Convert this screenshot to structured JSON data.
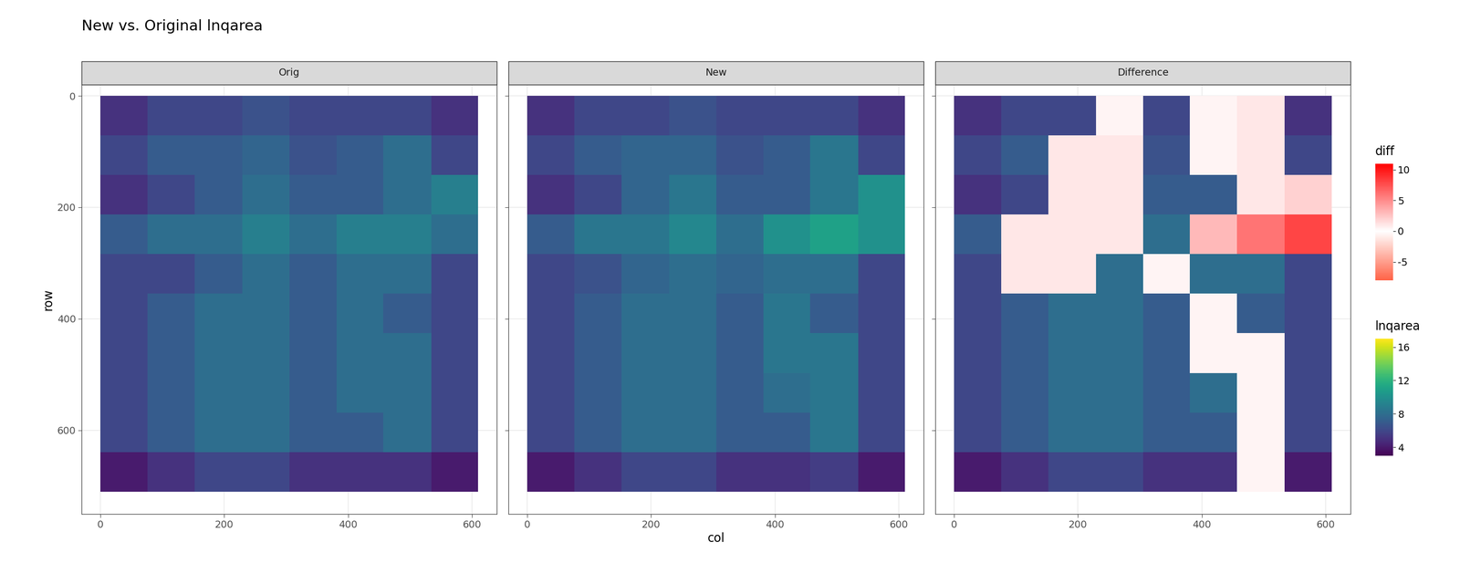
{
  "chart_data": {
    "type": "heatmap",
    "title": "New vs. Original lnqarea",
    "x_label": "col",
    "y_label": "row",
    "xlim": [
      -30,
      640
    ],
    "ylim": [
      750,
      -20
    ],
    "xticks": [
      0,
      200,
      400,
      600
    ],
    "yticks": [
      0,
      200,
      400,
      600
    ],
    "grid": true,
    "col_edges": [
      0,
      76,
      152,
      229,
      305,
      381,
      457,
      534,
      610
    ],
    "row_edges": [
      0,
      71,
      142,
      213,
      284,
      355,
      426,
      497,
      568,
      639,
      710
    ],
    "panels": [
      {
        "name": "Orig",
        "lnqarea": [
          [
            5,
            6,
            6,
            6.5,
            6,
            6,
            6,
            5
          ],
          [
            6,
            7,
            7,
            7.5,
            6.5,
            7,
            8,
            6
          ],
          [
            5,
            6,
            7,
            8,
            7,
            7,
            8,
            9
          ],
          [
            7,
            8,
            8,
            9,
            8,
            9,
            9,
            8
          ],
          [
            6,
            6,
            7,
            8,
            7,
            8,
            8,
            6
          ],
          [
            6,
            7,
            8,
            8,
            7,
            8,
            7,
            6
          ],
          [
            6,
            7,
            8,
            8,
            7,
            8,
            8,
            6
          ],
          [
            6,
            7,
            8,
            8,
            7,
            8,
            8,
            6
          ],
          [
            6,
            7,
            8,
            8,
            7,
            7,
            8,
            6
          ],
          [
            4,
            5,
            6,
            6,
            5,
            5,
            5,
            4
          ]
        ]
      },
      {
        "name": "New",
        "lnqarea": [
          [
            5,
            6,
            6,
            6.5,
            6,
            6,
            6,
            5
          ],
          [
            6,
            7,
            7.5,
            7.5,
            6.5,
            7,
            8.5,
            6
          ],
          [
            5,
            6,
            7.5,
            8.5,
            7,
            7,
            8.5,
            10
          ],
          [
            7,
            8.5,
            8.5,
            9.5,
            8,
            10,
            11,
            10
          ],
          [
            6,
            6.5,
            7.5,
            8,
            7.5,
            8,
            8,
            6
          ],
          [
            6,
            7,
            8,
            8,
            7,
            8.5,
            7,
            6
          ],
          [
            6,
            7,
            8,
            8,
            7,
            8.5,
            8.5,
            6
          ],
          [
            6,
            7,
            8,
            8,
            7,
            8,
            8.5,
            6
          ],
          [
            6,
            7,
            8,
            8,
            7,
            7,
            8.5,
            6
          ],
          [
            4,
            5,
            6,
            6,
            5,
            5,
            5.5,
            4
          ]
        ]
      },
      {
        "name": "Difference",
        "lnqarea": [
          [
            5,
            6,
            6,
            6.5,
            6,
            6,
            6,
            5
          ],
          [
            6,
            7,
            7.5,
            7.5,
            6.5,
            7,
            8.5,
            6
          ],
          [
            5,
            6,
            7.5,
            8.5,
            7,
            7,
            8.5,
            10
          ],
          [
            7,
            8.5,
            8.5,
            9.5,
            8,
            10,
            11,
            10
          ],
          [
            6,
            6.5,
            7.5,
            8,
            7.5,
            8,
            8,
            6
          ],
          [
            6,
            7,
            8,
            8,
            7,
            8.5,
            7,
            6
          ],
          [
            6,
            7,
            8,
            8,
            7,
            8.5,
            8.5,
            6
          ],
          [
            6,
            7,
            8,
            8,
            7,
            8,
            8.5,
            6
          ],
          [
            6,
            7,
            8,
            8,
            7,
            7,
            8.5,
            6
          ],
          [
            4,
            5,
            6,
            6,
            5,
            5,
            5.5,
            4
          ]
        ],
        "diff": [
          [
            null,
            null,
            null,
            0.5,
            null,
            0.5,
            1,
            null
          ],
          [
            null,
            null,
            1,
            1,
            null,
            0.5,
            1,
            null
          ],
          [
            null,
            null,
            1,
            1,
            null,
            null,
            1,
            2
          ],
          [
            null,
            1,
            1,
            1,
            null,
            3,
            6,
            8
          ],
          [
            null,
            1,
            1,
            null,
            0.5,
            null,
            null,
            null
          ],
          [
            null,
            null,
            null,
            null,
            null,
            0.5,
            null,
            null
          ],
          [
            null,
            null,
            null,
            null,
            null,
            0.5,
            0.5,
            null
          ],
          [
            null,
            null,
            null,
            null,
            null,
            null,
            0.5,
            null
          ],
          [
            null,
            null,
            null,
            null,
            null,
            null,
            0.5,
            null
          ],
          [
            null,
            null,
            null,
            null,
            null,
            null,
            0.5,
            null
          ]
        ]
      }
    ],
    "colorbars": {
      "diff": {
        "title": "diff",
        "lim": [
          -8,
          11
        ],
        "ticks": [
          -5,
          0,
          5,
          10
        ]
      },
      "lnqarea": {
        "title": "lnqarea",
        "lim": [
          3,
          17
        ],
        "ticks": [
          4,
          8,
          12,
          16
        ]
      }
    }
  }
}
